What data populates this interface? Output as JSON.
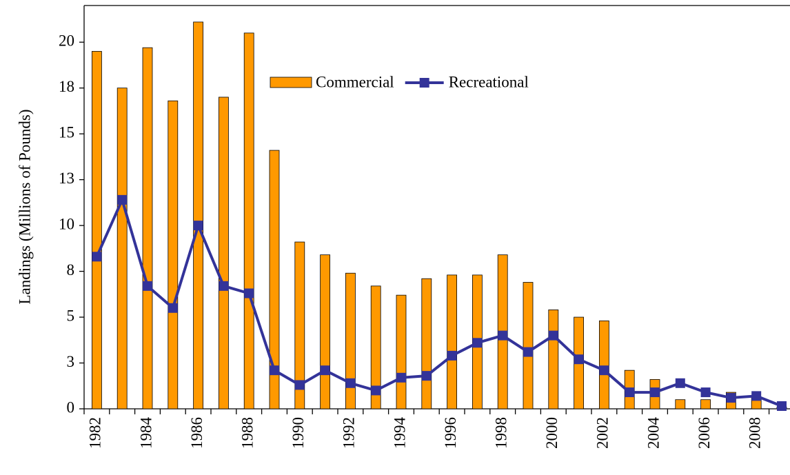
{
  "chart_data": {
    "type": "bar_line",
    "y_axis_label": "Landings (Millions of Pounds)",
    "categories": [
      "1982",
      null,
      "1984",
      null,
      "1986",
      null,
      "1988",
      null,
      "1990",
      null,
      "1992",
      null,
      "1994",
      null,
      "1996",
      null,
      "1998",
      null,
      "2000",
      null,
      "2002",
      null,
      "2004",
      null,
      "2006",
      null,
      "2008",
      null
    ],
    "series": [
      {
        "name": "Commercial",
        "type": "bar",
        "color": "#ff9900",
        "values": [
          19.5,
          17.5,
          19.7,
          16.8,
          21.1,
          17.0,
          20.5,
          14.1,
          9.1,
          8.4,
          7.4,
          6.7,
          6.2,
          7.1,
          7.3,
          7.3,
          8.4,
          6.9,
          5.4,
          5.0,
          4.8,
          2.1,
          1.6,
          0.5,
          0.5,
          0.9,
          0.6,
          0.1
        ]
      },
      {
        "name": "Recreational",
        "type": "line",
        "color": "#333399",
        "values": [
          8.3,
          11.4,
          6.7,
          5.5,
          10.0,
          6.7,
          6.3,
          2.1,
          1.3,
          2.1,
          1.4,
          1.0,
          1.7,
          1.8,
          2.9,
          3.6,
          4.0,
          3.1,
          4.0,
          2.7,
          2.1,
          0.9,
          0.9,
          1.4,
          0.9,
          0.6,
          0.7,
          0.15
        ]
      }
    ],
    "ylim": [
      0,
      22
    ],
    "yticks": [
      0,
      {
        "value": 2.5,
        "label": "3"
      },
      5,
      {
        "value": 7.5,
        "label": "8"
      },
      10,
      {
        "value": 12.5,
        "label": "13"
      },
      15,
      {
        "value": 17.5,
        "label": "18"
      },
      20
    ]
  }
}
